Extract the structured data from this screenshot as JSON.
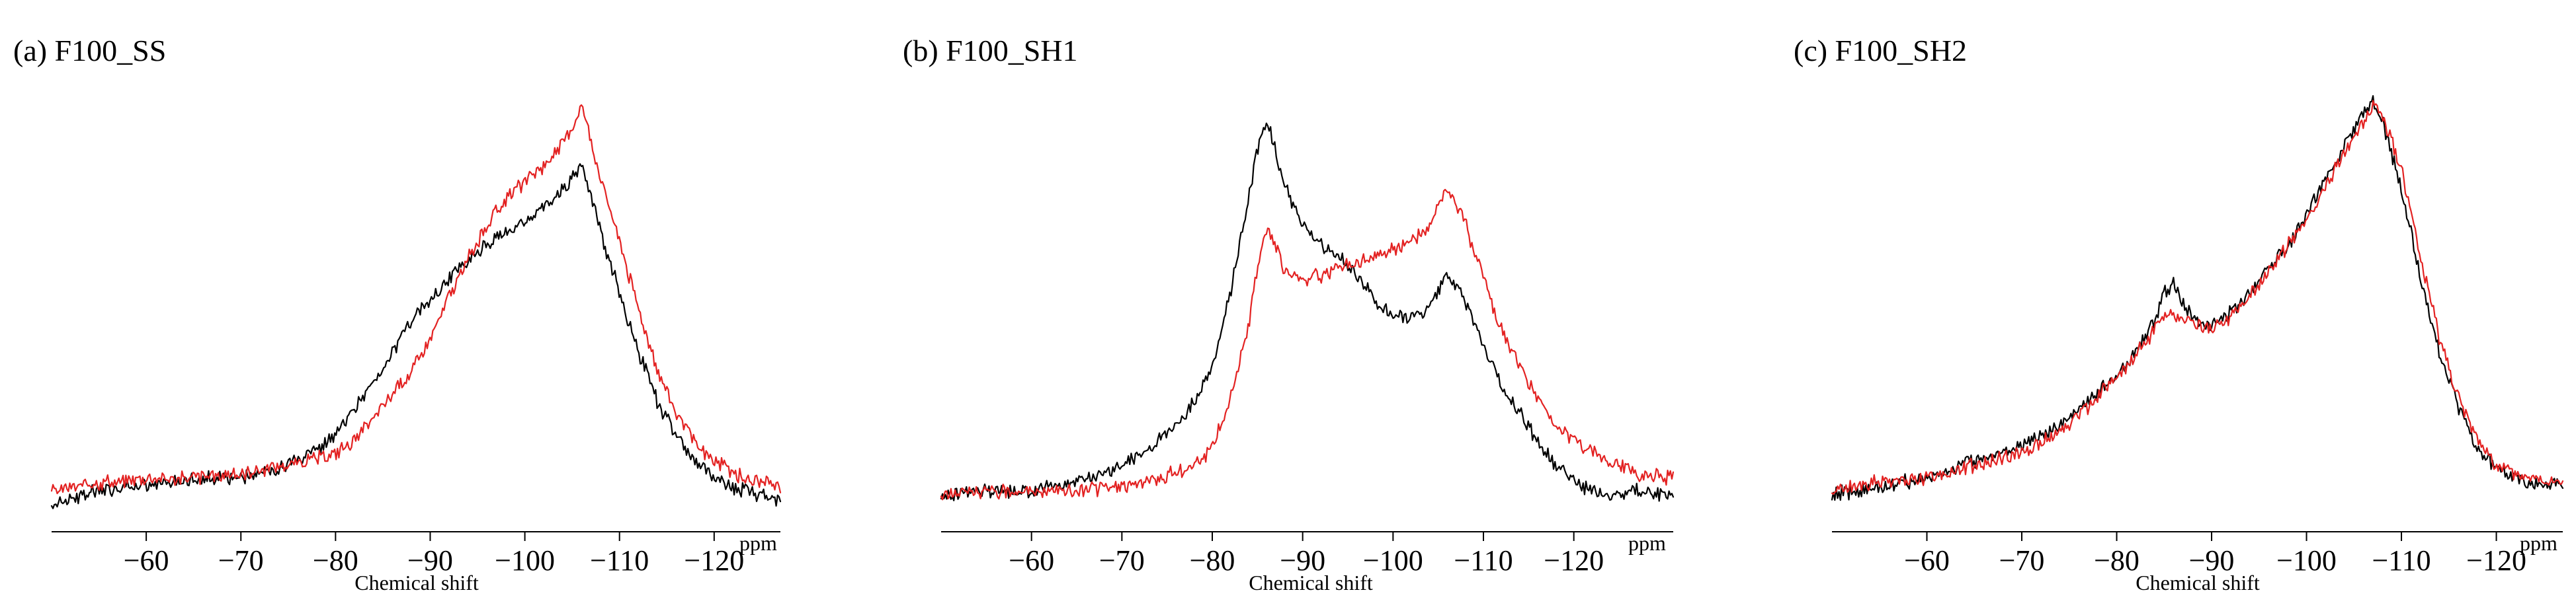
{
  "chart_data": [
    {
      "type": "line",
      "title": "(a) F100_SS",
      "xlabel": "Chemical shift",
      "xunit": "ppm",
      "xlim": [
        -50,
        -127
      ],
      "xticks": [
        -60,
        -70,
        -80,
        -90,
        -100,
        -110,
        -120
      ],
      "xtick_labels": [
        "−60",
        "−70",
        "−80",
        "−90",
        "−100",
        "−110",
        "−120"
      ],
      "ylim": [
        0,
        1
      ],
      "grid": false,
      "series": [
        {
          "color": "#000000",
          "x": [
            -50,
            -55,
            -60,
            -65,
            -70,
            -74,
            -77,
            -80,
            -82,
            -84,
            -86,
            -88,
            -90,
            -92,
            -94,
            -96,
            -98,
            -100,
            -102,
            -104,
            -105,
            -106,
            -107,
            -108,
            -110,
            -112,
            -114,
            -116,
            -118,
            -120,
            -123,
            -127
          ],
          "y": [
            0.02,
            0.05,
            0.06,
            0.08,
            0.08,
            0.1,
            0.13,
            0.18,
            0.24,
            0.31,
            0.38,
            0.45,
            0.5,
            0.55,
            0.6,
            0.63,
            0.66,
            0.69,
            0.72,
            0.76,
            0.79,
            0.82,
            0.75,
            0.66,
            0.52,
            0.38,
            0.26,
            0.18,
            0.12,
            0.08,
            0.05,
            0.03
          ]
        },
        {
          "color": "#e32222",
          "x": [
            -50,
            -55,
            -60,
            -65,
            -70,
            -74,
            -77,
            -80,
            -82,
            -84,
            -86,
            -88,
            -90,
            -92,
            -94,
            -96,
            -98,
            -100,
            -102,
            -104,
            -105,
            -106,
            -107,
            -108,
            -110,
            -112,
            -114,
            -116,
            -118,
            -120,
            -123,
            -127
          ],
          "y": [
            0.05,
            0.07,
            0.08,
            0.08,
            0.09,
            0.11,
            0.12,
            0.14,
            0.17,
            0.22,
            0.28,
            0.33,
            0.41,
            0.51,
            0.6,
            0.68,
            0.74,
            0.78,
            0.82,
            0.87,
            0.91,
            0.96,
            0.88,
            0.79,
            0.64,
            0.48,
            0.34,
            0.23,
            0.16,
            0.12,
            0.08,
            0.06
          ]
        }
      ]
    },
    {
      "type": "line",
      "title": "(b) F100_SH1",
      "xlabel": "Chemical shift",
      "xunit": "ppm",
      "xlim": [
        -50,
        -131
      ],
      "xticks": [
        -60,
        -70,
        -80,
        -90,
        -100,
        -110,
        -120
      ],
      "xtick_labels": [
        "−60",
        "−70",
        "−80",
        "−90",
        "−100",
        "−110",
        "−120"
      ],
      "ylim": [
        0,
        1
      ],
      "grid": false,
      "series": [
        {
          "color": "#000000",
          "x": [
            -50,
            -55,
            -60,
            -65,
            -70,
            -74,
            -77,
            -80,
            -82,
            -84,
            -85,
            -86,
            -87,
            -88,
            -90,
            -92,
            -94,
            -96,
            -98,
            -100,
            -102,
            -104,
            -106,
            -108,
            -110,
            -112,
            -115,
            -118,
            -121,
            -124,
            -127,
            -131
          ],
          "y": [
            0.04,
            0.05,
            0.05,
            0.07,
            0.11,
            0.17,
            0.23,
            0.34,
            0.52,
            0.74,
            0.86,
            0.93,
            0.86,
            0.77,
            0.68,
            0.63,
            0.61,
            0.56,
            0.5,
            0.46,
            0.46,
            0.48,
            0.56,
            0.5,
            0.39,
            0.3,
            0.2,
            0.11,
            0.06,
            0.04,
            0.05,
            0.04
          ]
        },
        {
          "color": "#e32222",
          "x": [
            -50,
            -55,
            -60,
            -65,
            -70,
            -74,
            -77,
            -80,
            -82,
            -84,
            -85,
            -86,
            -87,
            -88,
            -90,
            -92,
            -94,
            -96,
            -98,
            -100,
            -102,
            -104,
            -106,
            -108,
            -110,
            -112,
            -115,
            -118,
            -121,
            -124,
            -127,
            -131
          ],
          "y": [
            0.04,
            0.05,
            0.05,
            0.05,
            0.06,
            0.08,
            0.1,
            0.15,
            0.27,
            0.44,
            0.58,
            0.67,
            0.63,
            0.57,
            0.55,
            0.56,
            0.58,
            0.59,
            0.61,
            0.62,
            0.64,
            0.67,
            0.77,
            0.68,
            0.55,
            0.43,
            0.3,
            0.21,
            0.15,
            0.12,
            0.09,
            0.08
          ]
        }
      ]
    },
    {
      "type": "line",
      "title": "(c) F100_SH2",
      "xlabel": "Chemical shift",
      "xunit": "ppm",
      "xlim": [
        -50,
        -127
      ],
      "xticks": [
        -60,
        -70,
        -80,
        -90,
        -100,
        -110,
        -120
      ],
      "xtick_labels": [
        "−60",
        "−70",
        "−80",
        "−90",
        "−100",
        "−110",
        "−120"
      ],
      "ylim": [
        0,
        1
      ],
      "grid": false,
      "series": [
        {
          "color": "#000000",
          "x": [
            -50,
            -55,
            -60,
            -65,
            -70,
            -74,
            -77,
            -80,
            -82,
            -84,
            -85,
            -86,
            -87,
            -88,
            -90,
            -92,
            -94,
            -96,
            -98,
            -100,
            -102,
            -104,
            -106,
            -107,
            -108,
            -110,
            -112,
            -114,
            -116,
            -118,
            -120,
            -123,
            -127
          ],
          "y": [
            0.04,
            0.06,
            0.08,
            0.12,
            0.16,
            0.2,
            0.26,
            0.33,
            0.38,
            0.45,
            0.52,
            0.54,
            0.49,
            0.46,
            0.44,
            0.47,
            0.52,
            0.58,
            0.63,
            0.7,
            0.79,
            0.87,
            0.94,
            0.97,
            0.92,
            0.77,
            0.55,
            0.38,
            0.25,
            0.15,
            0.1,
            0.07,
            0.06
          ]
        },
        {
          "color": "#e32222",
          "x": [
            -50,
            -55,
            -60,
            -65,
            -70,
            -74,
            -77,
            -80,
            -82,
            -84,
            -85,
            -86,
            -87,
            -88,
            -90,
            -92,
            -94,
            -96,
            -98,
            -100,
            -102,
            -104,
            -106,
            -107,
            -108,
            -110,
            -112,
            -114,
            -116,
            -118,
            -120,
            -123,
            -127
          ],
          "y": [
            0.05,
            0.07,
            0.08,
            0.11,
            0.14,
            0.19,
            0.25,
            0.32,
            0.37,
            0.43,
            0.46,
            0.47,
            0.46,
            0.45,
            0.43,
            0.46,
            0.51,
            0.57,
            0.63,
            0.69,
            0.77,
            0.85,
            0.92,
            0.96,
            0.94,
            0.81,
            0.6,
            0.41,
            0.27,
            0.17,
            0.11,
            0.08,
            0.07
          ]
        }
      ]
    }
  ]
}
